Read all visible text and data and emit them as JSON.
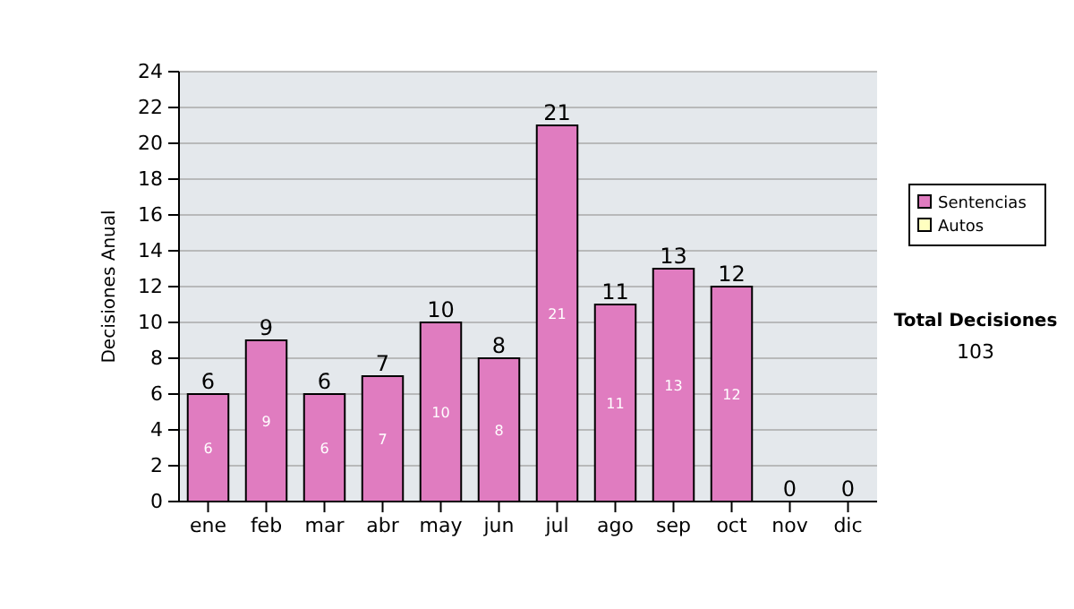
{
  "chart_data": {
    "type": "bar",
    "stacked": true,
    "ylabel": "Decisiones Anual",
    "categories": [
      "ene",
      "feb",
      "mar",
      "abr",
      "may",
      "jun",
      "jul",
      "ago",
      "sep",
      "oct",
      "nov",
      "dic"
    ],
    "series": [
      {
        "name": "Sentencias",
        "color": "#e07cc0",
        "values": [
          6,
          9,
          6,
          7,
          10,
          8,
          21,
          11,
          13,
          12,
          0,
          0
        ],
        "value_labels": [
          "6",
          "9",
          "6",
          "7",
          "10",
          "8",
          "21",
          "11",
          "13",
          "12",
          null,
          null
        ]
      },
      {
        "name": "Autos",
        "color": "#ffffc0",
        "values": [
          0,
          0,
          0,
          0,
          0,
          0,
          0,
          0,
          0,
          0,
          0,
          0
        ]
      }
    ],
    "totals": [
      "6",
      "9",
      "6",
      "7",
      "10",
      "8",
      "21",
      "11",
      "13",
      "12",
      "0",
      "0"
    ],
    "ylim": [
      0,
      24
    ],
    "yticks": [
      0,
      2,
      4,
      6,
      8,
      10,
      12,
      14,
      16,
      18,
      20,
      22,
      24
    ],
    "grid": "y",
    "legend": "right",
    "annotations": [
      "Total Decisiones",
      "103"
    ]
  }
}
